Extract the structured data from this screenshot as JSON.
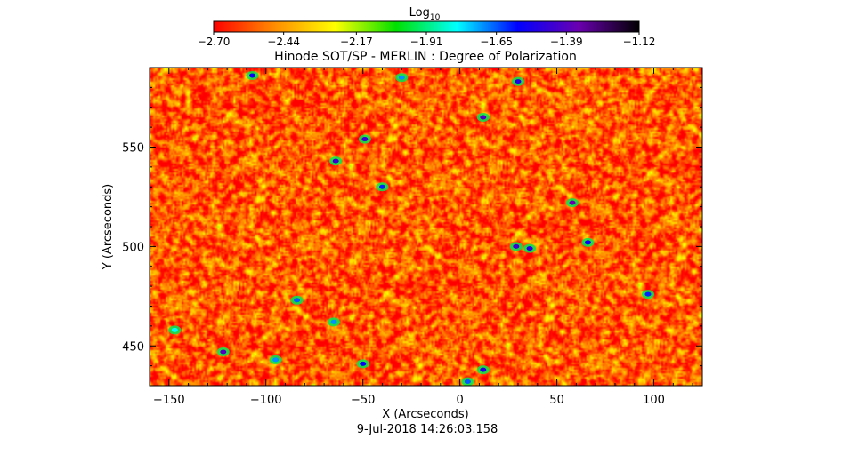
{
  "chart_data": {
    "type": "heatmap",
    "title": "Hinode SOT/SP - MERLIN : Degree of Polarization",
    "xlabel": "X (Arcseconds)",
    "ylabel": "Y (Arcseconds)",
    "timestamp": "9-Jul-2018 14:26:03.158",
    "xlim": [
      -160,
      125
    ],
    "ylim": [
      430,
      590
    ],
    "xticks": [
      -150,
      -100,
      -50,
      0,
      50,
      100
    ],
    "yticks": [
      450,
      500,
      550
    ],
    "xtick_labels": [
      "−150",
      "−100",
      "−50",
      "0",
      "50",
      "100"
    ],
    "ytick_labels": [
      "450",
      "500",
      "550"
    ],
    "colorbar": {
      "label_base": "Log",
      "label_sub": "10",
      "range": [
        -2.7,
        -1.12
      ],
      "ticks": [
        -2.7,
        -2.44,
        -2.17,
        -1.91,
        -1.65,
        -1.39,
        -1.12
      ],
      "tick_labels": [
        "−2.70",
        "−2.44",
        "−2.17",
        "−1.91",
        "−1.65",
        "−1.39",
        "−1.12"
      ],
      "colormap": [
        "#ff0000",
        "#ff8c00",
        "#ffff00",
        "#00e000",
        "#00ffff",
        "#0000ff",
        "#6a00b0",
        "#000000"
      ]
    },
    "background_level": -2.55,
    "features": [
      {
        "x": 58,
        "y": 522,
        "value": -1.35
      },
      {
        "x": 29,
        "y": 500,
        "value": -1.45
      },
      {
        "x": 36,
        "y": 499,
        "value": -1.5
      },
      {
        "x": -122,
        "y": 447,
        "value": -1.4
      },
      {
        "x": 12,
        "y": 438,
        "value": -1.5
      },
      {
        "x": 4,
        "y": 432,
        "value": -1.65
      },
      {
        "x": -49,
        "y": 554,
        "value": -1.45
      },
      {
        "x": 12,
        "y": 565,
        "value": -1.4
      },
      {
        "x": 30,
        "y": 583,
        "value": -1.5
      },
      {
        "x": -107,
        "y": 586,
        "value": -1.55
      },
      {
        "x": -64,
        "y": 543,
        "value": -1.45
      },
      {
        "x": -65,
        "y": 462,
        "value": -1.7
      },
      {
        "x": -50,
        "y": 441,
        "value": -1.55
      },
      {
        "x": 66,
        "y": 502,
        "value": -1.55
      },
      {
        "x": 97,
        "y": 476,
        "value": -1.6
      },
      {
        "x": -95,
        "y": 443,
        "value": -1.7
      },
      {
        "x": -40,
        "y": 530,
        "value": -1.6
      },
      {
        "x": -84,
        "y": 473,
        "value": -1.65
      },
      {
        "x": -30,
        "y": 585,
        "value": -1.7
      },
      {
        "x": -147,
        "y": 458,
        "value": -1.8
      }
    ]
  }
}
